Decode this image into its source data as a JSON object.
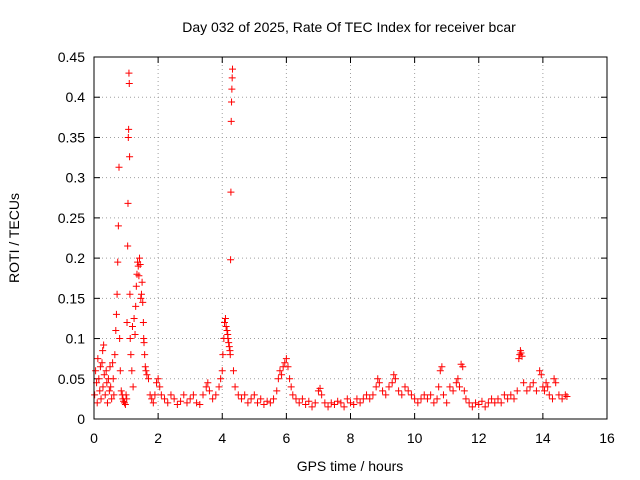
{
  "chart_data": {
    "type": "scatter",
    "title": "Day 032 of 2025, Rate Of TEC Index for receiver bcar",
    "xlabel": "GPS time / hours",
    "ylabel": "ROTI / TECUs",
    "xlim": [
      0,
      16
    ],
    "ylim": [
      0,
      0.45
    ],
    "xticks": [
      "0",
      "2",
      "4",
      "6",
      "8",
      "10",
      "12",
      "14",
      "16"
    ],
    "yticks": [
      "0",
      "0.05",
      "0.1",
      "0.15",
      "0.2",
      "0.25",
      "0.3",
      "0.35",
      "0.4",
      "0.45"
    ],
    "grid": true,
    "marker": "+",
    "color": "#ff0000",
    "series": [
      {
        "name": "ROTI",
        "points": [
          [
            0.02,
            0.03
          ],
          [
            0.05,
            0.06
          ],
          [
            0.08,
            0.045
          ],
          [
            0.1,
            0.02
          ],
          [
            0.12,
            0.075
          ],
          [
            0.15,
            0.05
          ],
          [
            0.18,
            0.035
          ],
          [
            0.2,
            0.065
          ],
          [
            0.22,
            0.025
          ],
          [
            0.25,
            0.07
          ],
          [
            0.27,
            0.085
          ],
          [
            0.28,
            0.04
          ],
          [
            0.3,
            0.092
          ],
          [
            0.32,
            0.055
          ],
          [
            0.35,
            0.03
          ],
          [
            0.38,
            0.06
          ],
          [
            0.4,
            0.045
          ],
          [
            0.42,
            0.02
          ],
          [
            0.45,
            0.05
          ],
          [
            0.48,
            0.035
          ],
          [
            0.5,
            0.065
          ],
          [
            0.52,
            0.04
          ],
          [
            0.55,
            0.025
          ],
          [
            0.58,
            0.07
          ],
          [
            0.6,
            0.05
          ],
          [
            0.62,
            0.03
          ],
          [
            0.65,
            0.08
          ],
          [
            0.68,
            0.11
          ],
          [
            0.7,
            0.13
          ],
          [
            0.72,
            0.155
          ],
          [
            0.74,
            0.195
          ],
          [
            0.76,
            0.24
          ],
          [
            0.78,
            0.313
          ],
          [
            0.8,
            0.1
          ],
          [
            0.82,
            0.06
          ],
          [
            0.85,
            0.035
          ],
          [
            0.88,
            0.03
          ],
          [
            0.9,
            0.025
          ],
          [
            0.92,
            0.022
          ],
          [
            0.95,
            0.02
          ],
          [
            0.98,
            0.018
          ],
          [
            1.0,
            0.03
          ],
          [
            1.02,
            0.025
          ],
          [
            1.03,
            0.12
          ],
          [
            1.05,
            0.215
          ],
          [
            1.06,
            0.268
          ],
          [
            1.07,
            0.35
          ],
          [
            1.08,
            0.36
          ],
          [
            1.09,
            0.43
          ],
          [
            1.1,
            0.417
          ],
          [
            1.11,
            0.326
          ],
          [
            1.12,
            0.155
          ],
          [
            1.13,
            0.1
          ],
          [
            1.15,
            0.08
          ],
          [
            1.18,
            0.06
          ],
          [
            1.2,
            0.115
          ],
          [
            1.22,
            0.04
          ],
          [
            1.25,
            0.125
          ],
          [
            1.28,
            0.105
          ],
          [
            1.3,
            0.14
          ],
          [
            1.32,
            0.165
          ],
          [
            1.34,
            0.18
          ],
          [
            1.36,
            0.195
          ],
          [
            1.38,
            0.19
          ],
          [
            1.4,
            0.178
          ],
          [
            1.42,
            0.2
          ],
          [
            1.44,
            0.192
          ],
          [
            1.46,
            0.15
          ],
          [
            1.48,
            0.155
          ],
          [
            1.5,
            0.17
          ],
          [
            1.52,
            0.145
          ],
          [
            1.54,
            0.12
          ],
          [
            1.55,
            0.1
          ],
          [
            1.56,
            0.095
          ],
          [
            1.58,
            0.08
          ],
          [
            1.6,
            0.065
          ],
          [
            1.62,
            0.06
          ],
          [
            1.65,
            0.055
          ],
          [
            1.7,
            0.05
          ],
          [
            1.75,
            0.03
          ],
          [
            1.8,
            0.025
          ],
          [
            1.85,
            0.02
          ],
          [
            1.9,
            0.03
          ],
          [
            1.95,
            0.045
          ],
          [
            2.0,
            0.05
          ],
          [
            2.05,
            0.04
          ],
          [
            2.1,
            0.03
          ],
          [
            2.2,
            0.025
          ],
          [
            2.3,
            0.02
          ],
          [
            2.4,
            0.03
          ],
          [
            2.5,
            0.025
          ],
          [
            2.6,
            0.018
          ],
          [
            2.7,
            0.022
          ],
          [
            2.8,
            0.03
          ],
          [
            2.9,
            0.02
          ],
          [
            3.0,
            0.025
          ],
          [
            3.1,
            0.03
          ],
          [
            3.2,
            0.02
          ],
          [
            3.3,
            0.018
          ],
          [
            3.4,
            0.03
          ],
          [
            3.5,
            0.04
          ],
          [
            3.55,
            0.045
          ],
          [
            3.6,
            0.035
          ],
          [
            3.7,
            0.025
          ],
          [
            3.8,
            0.03
          ],
          [
            3.9,
            0.04
          ],
          [
            3.95,
            0.05
          ],
          [
            4.0,
            0.06
          ],
          [
            4.02,
            0.08
          ],
          [
            4.05,
            0.1
          ],
          [
            4.07,
            0.12
          ],
          [
            4.1,
            0.125
          ],
          [
            4.12,
            0.115
          ],
          [
            4.15,
            0.11
          ],
          [
            4.17,
            0.105
          ],
          [
            4.18,
            0.1
          ],
          [
            4.2,
            0.095
          ],
          [
            4.22,
            0.09
          ],
          [
            4.24,
            0.085
          ],
          [
            4.25,
            0.08
          ],
          [
            4.26,
            0.198
          ],
          [
            4.27,
            0.282
          ],
          [
            4.28,
            0.37
          ],
          [
            4.29,
            0.394
          ],
          [
            4.3,
            0.41
          ],
          [
            4.31,
            0.424
          ],
          [
            4.32,
            0.435
          ],
          [
            4.35,
            0.06
          ],
          [
            4.4,
            0.04
          ],
          [
            4.5,
            0.03
          ],
          [
            4.6,
            0.025
          ],
          [
            4.7,
            0.03
          ],
          [
            4.8,
            0.02
          ],
          [
            4.9,
            0.025
          ],
          [
            5.0,
            0.03
          ],
          [
            5.1,
            0.02
          ],
          [
            5.2,
            0.025
          ],
          [
            5.3,
            0.018
          ],
          [
            5.4,
            0.022
          ],
          [
            5.5,
            0.02
          ],
          [
            5.6,
            0.025
          ],
          [
            5.7,
            0.035
          ],
          [
            5.75,
            0.05
          ],
          [
            5.8,
            0.06
          ],
          [
            5.85,
            0.055
          ],
          [
            5.9,
            0.065
          ],
          [
            5.95,
            0.07
          ],
          [
            6.0,
            0.075
          ],
          [
            6.05,
            0.065
          ],
          [
            6.1,
            0.05
          ],
          [
            6.15,
            0.04
          ],
          [
            6.2,
            0.03
          ],
          [
            6.3,
            0.025
          ],
          [
            6.4,
            0.02
          ],
          [
            6.5,
            0.025
          ],
          [
            6.6,
            0.018
          ],
          [
            6.7,
            0.022
          ],
          [
            6.8,
            0.015
          ],
          [
            6.9,
            0.02
          ],
          [
            7.0,
            0.035
          ],
          [
            7.05,
            0.038
          ],
          [
            7.1,
            0.03
          ],
          [
            7.2,
            0.02
          ],
          [
            7.3,
            0.015
          ],
          [
            7.4,
            0.02
          ],
          [
            7.5,
            0.018
          ],
          [
            7.6,
            0.022
          ],
          [
            7.7,
            0.02
          ],
          [
            7.8,
            0.015
          ],
          [
            7.9,
            0.025
          ],
          [
            8.0,
            0.02
          ],
          [
            8.1,
            0.018
          ],
          [
            8.2,
            0.025
          ],
          [
            8.3,
            0.02
          ],
          [
            8.4,
            0.025
          ],
          [
            8.5,
            0.03
          ],
          [
            8.6,
            0.025
          ],
          [
            8.7,
            0.03
          ],
          [
            8.8,
            0.04
          ],
          [
            8.85,
            0.05
          ],
          [
            8.9,
            0.045
          ],
          [
            9.0,
            0.035
          ],
          [
            9.1,
            0.03
          ],
          [
            9.2,
            0.04
          ],
          [
            9.3,
            0.045
          ],
          [
            9.35,
            0.055
          ],
          [
            9.4,
            0.05
          ],
          [
            9.5,
            0.035
          ],
          [
            9.6,
            0.03
          ],
          [
            9.7,
            0.04
          ],
          [
            9.8,
            0.035
          ],
          [
            9.9,
            0.03
          ],
          [
            10.0,
            0.025
          ],
          [
            10.1,
            0.02
          ],
          [
            10.2,
            0.025
          ],
          [
            10.3,
            0.03
          ],
          [
            10.4,
            0.025
          ],
          [
            10.5,
            0.03
          ],
          [
            10.6,
            0.02
          ],
          [
            10.7,
            0.025
          ],
          [
            10.75,
            0.04
          ],
          [
            10.8,
            0.06
          ],
          [
            10.85,
            0.065
          ],
          [
            10.9,
            0.03
          ],
          [
            11.0,
            0.02
          ],
          [
            11.1,
            0.04
          ],
          [
            11.2,
            0.035
          ],
          [
            11.3,
            0.045
          ],
          [
            11.35,
            0.05
          ],
          [
            11.4,
            0.04
          ],
          [
            11.45,
            0.068
          ],
          [
            11.5,
            0.065
          ],
          [
            11.55,
            0.035
          ],
          [
            11.6,
            0.025
          ],
          [
            11.7,
            0.02
          ],
          [
            11.8,
            0.015
          ],
          [
            11.9,
            0.02
          ],
          [
            12.0,
            0.018
          ],
          [
            12.1,
            0.022
          ],
          [
            12.2,
            0.015
          ],
          [
            12.3,
            0.02
          ],
          [
            12.4,
            0.025
          ],
          [
            12.5,
            0.02
          ],
          [
            12.6,
            0.025
          ],
          [
            12.7,
            0.02
          ],
          [
            12.8,
            0.03
          ],
          [
            12.9,
            0.025
          ],
          [
            13.0,
            0.03
          ],
          [
            13.1,
            0.025
          ],
          [
            13.2,
            0.035
          ],
          [
            13.25,
            0.075
          ],
          [
            13.28,
            0.08
          ],
          [
            13.3,
            0.085
          ],
          [
            13.32,
            0.082
          ],
          [
            13.35,
            0.078
          ],
          [
            13.4,
            0.045
          ],
          [
            13.5,
            0.035
          ],
          [
            13.6,
            0.04
          ],
          [
            13.7,
            0.045
          ],
          [
            13.8,
            0.035
          ],
          [
            13.9,
            0.06
          ],
          [
            13.95,
            0.055
          ],
          [
            14.0,
            0.04
          ],
          [
            14.05,
            0.035
          ],
          [
            14.1,
            0.045
          ],
          [
            14.15,
            0.04
          ],
          [
            14.2,
            0.03
          ],
          [
            14.3,
            0.025
          ],
          [
            14.35,
            0.05
          ],
          [
            14.4,
            0.045
          ],
          [
            14.5,
            0.03
          ],
          [
            14.6,
            0.025
          ],
          [
            14.7,
            0.03
          ],
          [
            14.75,
            0.028
          ]
        ]
      }
    ]
  }
}
